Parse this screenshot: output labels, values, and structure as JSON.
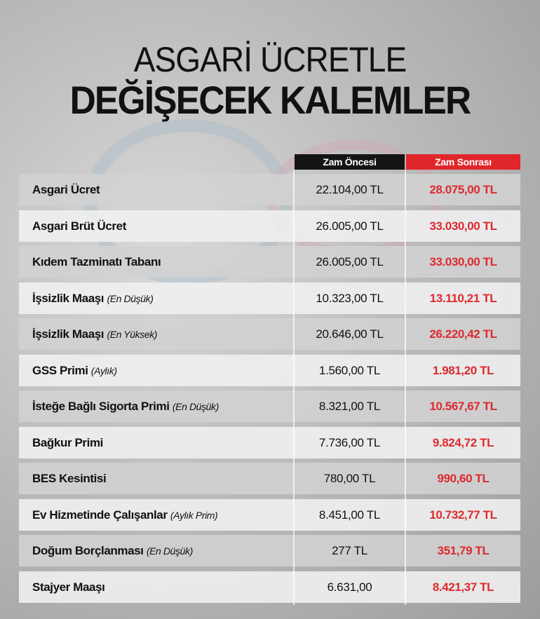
{
  "title": {
    "line1": "ASGARİ ÜCRETLE",
    "line2": "DEĞİŞECEK KALEMLER"
  },
  "columns": {
    "before": "Zam Öncesi",
    "after": "Zam Sonrası"
  },
  "colors": {
    "accent": "#e0262b",
    "header_dark": "#141414",
    "value_red": "#dd2a30"
  },
  "rows": [
    {
      "label": "Asgari Ücret",
      "note": "",
      "before": "22.104,00 TL",
      "after": "28.075,00 TL"
    },
    {
      "label": "Asgari Brüt Ücret",
      "note": "",
      "before": "26.005,00 TL",
      "after": "33.030,00 TL"
    },
    {
      "label": "Kıdem Tazminatı Tabanı",
      "note": "",
      "before": "26.005,00 TL",
      "after": "33.030,00 TL"
    },
    {
      "label": "İşsizlik Maaşı",
      "note": "(En Düşük)",
      "before": "10.323,00 TL",
      "after": "13.110,21 TL"
    },
    {
      "label": "İşsizlik Maaşı",
      "note": "(En Yüksek)",
      "before": "20.646,00 TL",
      "after": "26.220,42 TL"
    },
    {
      "label": "GSS Primi",
      "note": "(Aylık)",
      "before": "1.560,00 TL",
      "after": "1.981,20 TL"
    },
    {
      "label": "İsteğe Bağlı Sigorta Primi",
      "note": "(En Düşük)",
      "before": "8.321,00 TL",
      "after": "10.567,67 TL"
    },
    {
      "label": "Bağkur Primi",
      "note": "",
      "before": "7.736,00 TL",
      "after": "9.824,72 TL"
    },
    {
      "label": "BES Kesintisi",
      "note": "",
      "before": "780,00 TL",
      "after": "990,60 TL"
    },
    {
      "label": "Ev Hizmetinde Çalışanlar",
      "note": "(Aylık Prim)",
      "before": "8.451,00 TL",
      "after": "10.732,77 TL"
    },
    {
      "label": "Doğum Borçlanması",
      "note": "(En Düşük)",
      "before": "277 TL",
      "after": "351,79 TL"
    },
    {
      "label": "Stajyer Maaşı",
      "note": "",
      "before": "6.631,00",
      "after": "8.421,37 TL"
    }
  ]
}
